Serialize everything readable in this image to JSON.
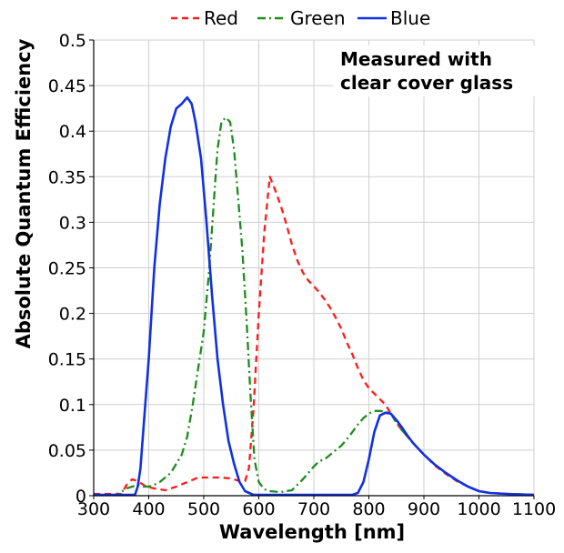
{
  "chart_data": {
    "type": "line",
    "title": "",
    "xlabel": "Wavelength [nm]",
    "ylabel": "Absolute Quantum Efficiency",
    "xlim": [
      300,
      1100
    ],
    "ylim": [
      0,
      0.5
    ],
    "grid": true,
    "legend_position": "top",
    "x_ticks": [
      "300",
      "400",
      "500",
      "600",
      "700",
      "800",
      "900",
      "1000",
      "1100"
    ],
    "y_ticks": [
      "0",
      "0.05",
      "0.1",
      "0.15",
      "0.2",
      "0.25",
      "0.3",
      "0.35",
      "0.4",
      "0.45",
      "0.5"
    ],
    "annotation": [
      "Measured with",
      "clear cover glass"
    ],
    "series": [
      {
        "name": "Red",
        "color": "#ff1a1a",
        "dash": "dashed",
        "points": [
          [
            300,
            0.002
          ],
          [
            350,
            0.002
          ],
          [
            360,
            0.012
          ],
          [
            370,
            0.018
          ],
          [
            380,
            0.016
          ],
          [
            395,
            0.01
          ],
          [
            410,
            0.008
          ],
          [
            430,
            0.006
          ],
          [
            450,
            0.01
          ],
          [
            470,
            0.015
          ],
          [
            490,
            0.02
          ],
          [
            510,
            0.02
          ],
          [
            530,
            0.02
          ],
          [
            550,
            0.019
          ],
          [
            565,
            0.016
          ],
          [
            575,
            0.016
          ],
          [
            582,
            0.03
          ],
          [
            590,
            0.09
          ],
          [
            600,
            0.2
          ],
          [
            610,
            0.29
          ],
          [
            620,
            0.35
          ],
          [
            630,
            0.335
          ],
          [
            640,
            0.318
          ],
          [
            650,
            0.298
          ],
          [
            660,
            0.276
          ],
          [
            670,
            0.258
          ],
          [
            680,
            0.245
          ],
          [
            690,
            0.236
          ],
          [
            700,
            0.23
          ],
          [
            710,
            0.223
          ],
          [
            720,
            0.215
          ],
          [
            730,
            0.206
          ],
          [
            740,
            0.195
          ],
          [
            750,
            0.183
          ],
          [
            760,
            0.168
          ],
          [
            770,
            0.155
          ],
          [
            780,
            0.14
          ],
          [
            790,
            0.127
          ],
          [
            800,
            0.118
          ],
          [
            810,
            0.112
          ],
          [
            820,
            0.106
          ],
          [
            830,
            0.1
          ],
          [
            840,
            0.09
          ],
          [
            850,
            0.08
          ],
          [
            860,
            0.072
          ],
          [
            880,
            0.058
          ],
          [
            900,
            0.045
          ],
          [
            920,
            0.033
          ],
          [
            940,
            0.024
          ],
          [
            960,
            0.016
          ],
          [
            980,
            0.01
          ],
          [
            1000,
            0.005
          ],
          [
            1020,
            0.003
          ],
          [
            1050,
            0.002
          ],
          [
            1100,
            0.001
          ]
        ]
      },
      {
        "name": "Green",
        "color": "#1e8c1e",
        "dash": "dashdot",
        "points": [
          [
            300,
            0.001
          ],
          [
            340,
            0.001
          ],
          [
            350,
            0.004
          ],
          [
            360,
            0.008
          ],
          [
            370,
            0.01
          ],
          [
            380,
            0.012
          ],
          [
            390,
            0.01
          ],
          [
            400,
            0.01
          ],
          [
            410,
            0.012
          ],
          [
            420,
            0.015
          ],
          [
            430,
            0.02
          ],
          [
            440,
            0.025
          ],
          [
            450,
            0.035
          ],
          [
            460,
            0.045
          ],
          [
            470,
            0.065
          ],
          [
            480,
            0.1
          ],
          [
            490,
            0.14
          ],
          [
            500,
            0.18
          ],
          [
            510,
            0.25
          ],
          [
            518,
            0.32
          ],
          [
            525,
            0.38
          ],
          [
            532,
            0.41
          ],
          [
            540,
            0.415
          ],
          [
            548,
            0.41
          ],
          [
            555,
            0.38
          ],
          [
            562,
            0.33
          ],
          [
            570,
            0.27
          ],
          [
            578,
            0.19
          ],
          [
            585,
            0.11
          ],
          [
            592,
            0.04
          ],
          [
            600,
            0.015
          ],
          [
            610,
            0.007
          ],
          [
            620,
            0.005
          ],
          [
            640,
            0.004
          ],
          [
            660,
            0.006
          ],
          [
            670,
            0.012
          ],
          [
            680,
            0.018
          ],
          [
            690,
            0.025
          ],
          [
            700,
            0.032
          ],
          [
            710,
            0.038
          ],
          [
            720,
            0.04
          ],
          [
            730,
            0.045
          ],
          [
            740,
            0.05
          ],
          [
            750,
            0.055
          ],
          [
            760,
            0.062
          ],
          [
            770,
            0.07
          ],
          [
            780,
            0.078
          ],
          [
            790,
            0.085
          ],
          [
            800,
            0.09
          ],
          [
            810,
            0.093
          ],
          [
            820,
            0.093
          ],
          [
            830,
            0.092
          ],
          [
            840,
            0.09
          ],
          [
            850,
            0.08
          ],
          [
            860,
            0.072
          ],
          [
            880,
            0.058
          ],
          [
            900,
            0.045
          ],
          [
            920,
            0.034
          ],
          [
            940,
            0.025
          ],
          [
            960,
            0.017
          ],
          [
            980,
            0.01
          ],
          [
            1000,
            0.005
          ],
          [
            1020,
            0.003
          ],
          [
            1050,
            0.002
          ],
          [
            1100,
            0.001
          ]
        ]
      },
      {
        "name": "Blue",
        "color": "#1030e6",
        "dash": "solid",
        "points": [
          [
            300,
            0.001
          ],
          [
            360,
            0.001
          ],
          [
            375,
            0.001
          ],
          [
            380,
            0.01
          ],
          [
            385,
            0.03
          ],
          [
            390,
            0.07
          ],
          [
            400,
            0.15
          ],
          [
            410,
            0.25
          ],
          [
            420,
            0.32
          ],
          [
            430,
            0.37
          ],
          [
            440,
            0.405
          ],
          [
            450,
            0.425
          ],
          [
            460,
            0.43
          ],
          [
            470,
            0.437
          ],
          [
            478,
            0.43
          ],
          [
            485,
            0.41
          ],
          [
            495,
            0.37
          ],
          [
            505,
            0.3
          ],
          [
            515,
            0.22
          ],
          [
            525,
            0.15
          ],
          [
            535,
            0.1
          ],
          [
            545,
            0.06
          ],
          [
            555,
            0.035
          ],
          [
            565,
            0.015
          ],
          [
            575,
            0.005
          ],
          [
            590,
            0.001
          ],
          [
            620,
            0.001
          ],
          [
            660,
            0.001
          ],
          [
            700,
            0.001
          ],
          [
            740,
            0.001
          ],
          [
            770,
            0.001
          ],
          [
            780,
            0.003
          ],
          [
            790,
            0.015
          ],
          [
            800,
            0.04
          ],
          [
            810,
            0.07
          ],
          [
            820,
            0.088
          ],
          [
            830,
            0.091
          ],
          [
            840,
            0.09
          ],
          [
            850,
            0.083
          ],
          [
            860,
            0.075
          ],
          [
            870,
            0.066
          ],
          [
            880,
            0.058
          ],
          [
            900,
            0.045
          ],
          [
            920,
            0.034
          ],
          [
            940,
            0.025
          ],
          [
            960,
            0.017
          ],
          [
            980,
            0.01
          ],
          [
            1000,
            0.005
          ],
          [
            1020,
            0.003
          ],
          [
            1050,
            0.002
          ],
          [
            1100,
            0.001
          ]
        ]
      }
    ]
  }
}
